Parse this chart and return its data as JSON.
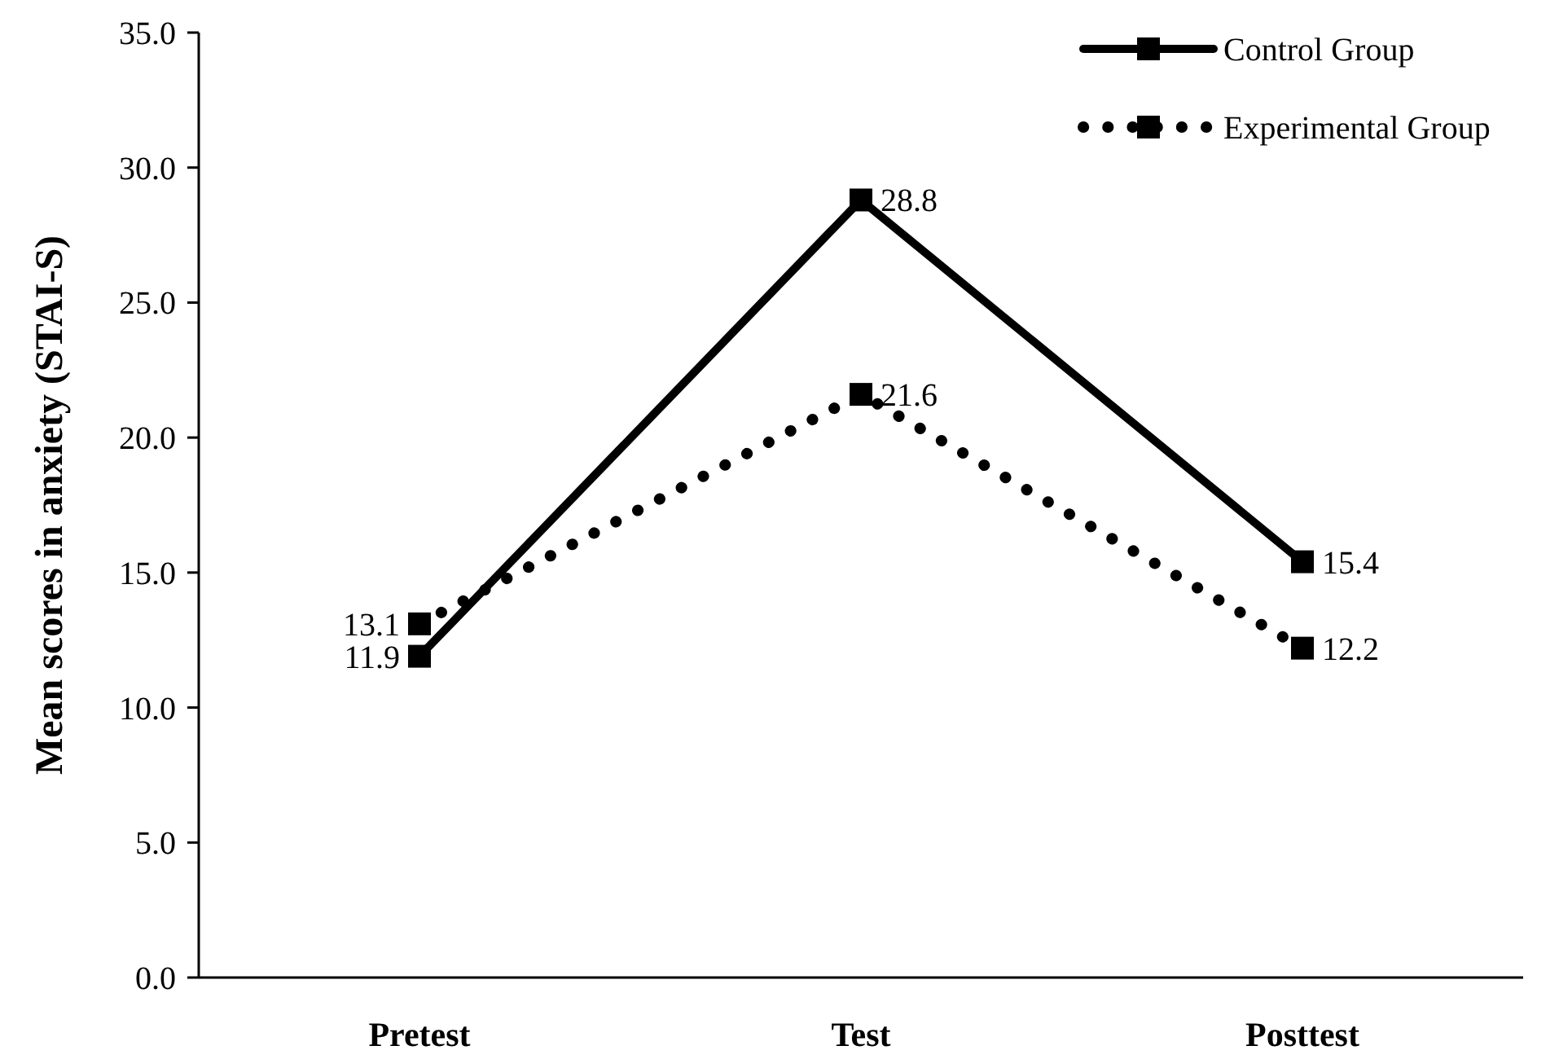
{
  "chart_data": {
    "type": "line",
    "ylabel": "Mean scores in anxiety (STAI-S)",
    "categories": [
      "Pretest",
      "Test",
      "Posttest"
    ],
    "series": [
      {
        "name": "Control Group",
        "color": "#000000",
        "values": [
          11.9,
          28.8,
          15.4
        ],
        "line_style": "solid"
      },
      {
        "name": "Experimental Group",
        "color": "#000000",
        "values": [
          13.1,
          21.6,
          12.2
        ],
        "line_style": "dotted"
      }
    ],
    "ylim": [
      0,
      35
    ],
    "yticks": [
      {
        "value": 0,
        "label": "0.0"
      },
      {
        "value": 5,
        "label": "5.0"
      },
      {
        "value": 10,
        "label": "10.0"
      },
      {
        "value": 15,
        "label": "15.0"
      },
      {
        "value": 20,
        "label": "20.0"
      },
      {
        "value": 25,
        "label": "25.0"
      },
      {
        "value": 30,
        "label": "30.0"
      },
      {
        "value": 35,
        "label": "35.0"
      }
    ],
    "grid": false,
    "legend": "top right",
    "marker": "square",
    "data_labels": true
  }
}
